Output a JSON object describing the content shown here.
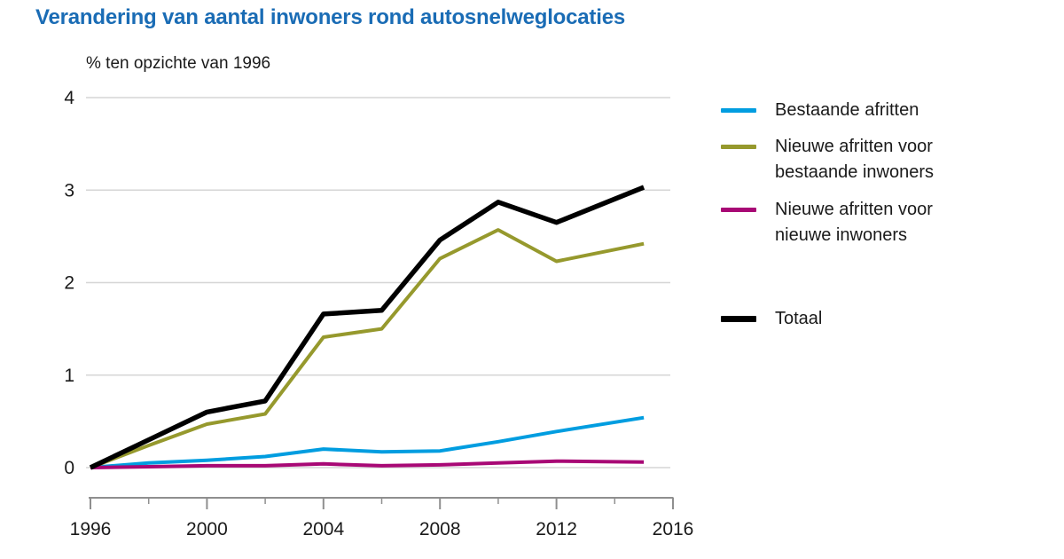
{
  "header": {
    "title": "Verandering van aantal inwoners rond autosnelweglocaties",
    "title_color": "#1a6cb5"
  },
  "chart_data": {
    "type": "line",
    "title": "Verandering van aantal inwoners rond autosnelweglocaties",
    "unit_label": "% ten opzichte van 1996",
    "x": [
      1996,
      1998,
      2000,
      2002,
      2004,
      2006,
      2008,
      2010,
      2012,
      2015
    ],
    "xlim": [
      1996,
      2016
    ],
    "ylim": [
      0,
      4
    ],
    "y_ticks": [
      0,
      1,
      2,
      3,
      4
    ],
    "x_ticks_major": [
      1996,
      2000,
      2004,
      2008,
      2012,
      2016
    ],
    "x_ticks_minor": [
      1998,
      2002,
      2006,
      2010,
      2014
    ],
    "grid": true,
    "legend_position": "right",
    "series": [
      {
        "name": "Bestaande afritten",
        "color": "#009de0",
        "width": 4,
        "values": [
          0,
          0.05,
          0.08,
          0.12,
          0.2,
          0.17,
          0.18,
          0.28,
          0.39,
          0.54
        ]
      },
      {
        "name": "Nieuwe afritten voor bestaande inwoners",
        "color": "#96992d",
        "width": 4,
        "values": [
          0,
          0.24,
          0.47,
          0.58,
          1.41,
          1.5,
          2.26,
          2.57,
          2.23,
          2.42
        ]
      },
      {
        "name": "Nieuwe afritten voor nieuwe inwoners",
        "color": "#a80875",
        "width": 4,
        "values": [
          0,
          0.01,
          0.02,
          0.02,
          0.04,
          0.02,
          0.03,
          0.05,
          0.07,
          0.06
        ]
      },
      {
        "name": "Totaal",
        "color": "#000000",
        "width": 5.5,
        "values": [
          0,
          0.3,
          0.6,
          0.72,
          1.66,
          1.7,
          2.46,
          2.87,
          2.65,
          3.03
        ]
      }
    ]
  },
  "colors": {
    "gridline": "#d6d6d6",
    "axis": "#8f8f8f",
    "text": "#1a1a1a"
  }
}
